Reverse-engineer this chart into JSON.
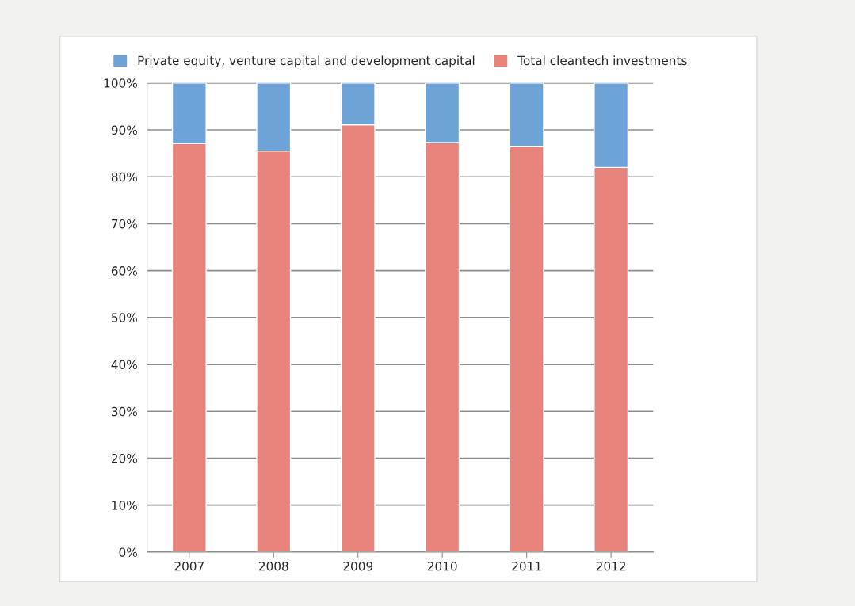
{
  "chart_data": {
    "type": "bar",
    "stacked": true,
    "categories": [
      "2007",
      "2008",
      "2009",
      "2010",
      "2011",
      "2012"
    ],
    "series": [
      {
        "name": "Total cleantech investments",
        "color": "#e8837c",
        "values": [
          87.1,
          85.5,
          91.1,
          87.3,
          86.5,
          82.0
        ]
      },
      {
        "name": "Private equity, venture capital and development capital",
        "color": "#6ea3d8",
        "values": [
          12.9,
          14.5,
          8.9,
          12.7,
          13.5,
          18.0
        ]
      }
    ],
    "ylim": [
      0,
      100
    ],
    "yticks": [
      {
        "value": 0,
        "label": "0%"
      },
      {
        "value": 10,
        "label": "10%"
      },
      {
        "value": 20,
        "label": "20%"
      },
      {
        "value": 30,
        "label": "30%"
      },
      {
        "value": 40,
        "label": "40%"
      },
      {
        "value": 50,
        "label": "50%"
      },
      {
        "value": 60,
        "label": "60%"
      },
      {
        "value": 70,
        "label": "70%"
      },
      {
        "value": 80,
        "label": "80%"
      },
      {
        "value": 90,
        "label": "90%"
      },
      {
        "value": 100,
        "label": "100%"
      }
    ],
    "grid": "y",
    "legend": "top"
  }
}
